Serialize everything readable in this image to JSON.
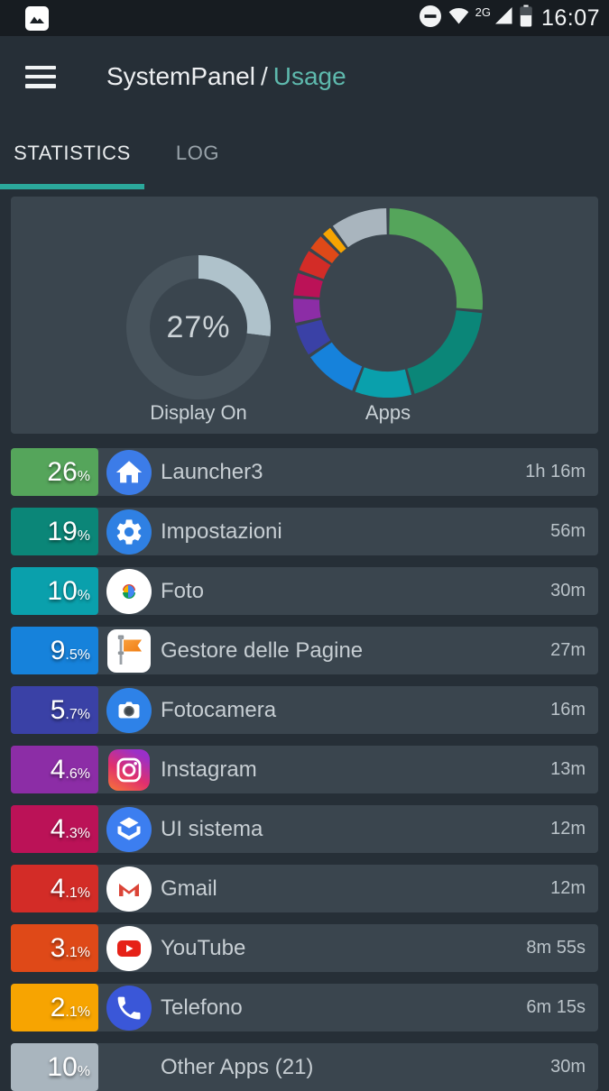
{
  "status_bar": {
    "time": "16:07",
    "network": "2G",
    "icons": [
      "image-notification",
      "do-not-disturb",
      "wifi",
      "signal-strength",
      "battery"
    ]
  },
  "header": {
    "app_title": "SystemPanel",
    "separator": "/",
    "section": "Usage",
    "menu_icon": "hamburger-menu"
  },
  "tabs": [
    {
      "label": "STATISTICS",
      "active": true
    },
    {
      "label": "LOG",
      "active": false
    }
  ],
  "theme": {
    "background": "#262F37",
    "panel": "#3A454E",
    "status_bar": "#171C21",
    "accent_teal": "#2BA89B",
    "usage_text": "#5EB9AD"
  },
  "chart_data": [
    {
      "type": "pie",
      "style": "donut",
      "title": "Display On",
      "center_label": "27%",
      "gap_deg": 0,
      "segments": [
        {
          "label": "Display On",
          "value": 27,
          "color": "#AFC2CB"
        },
        {
          "label": "Remainder",
          "value": 73,
          "color": "#47535C"
        }
      ]
    },
    {
      "type": "pie",
      "style": "donut",
      "title": "Apps",
      "gap_deg": 2,
      "segments": [
        {
          "label": "Launcher3",
          "value": 26,
          "color": "#55A55B"
        },
        {
          "label": "Impostazioni",
          "value": 19,
          "color": "#0B8678"
        },
        {
          "label": "Foto",
          "value": 10,
          "color": "#0AA0AC"
        },
        {
          "label": "Gestore delle Pagine",
          "value": 9.5,
          "color": "#1682DB"
        },
        {
          "label": "Fotocamera",
          "value": 5.7,
          "color": "#3A41A6"
        },
        {
          "label": "Instagram",
          "value": 4.6,
          "color": "#8C2DA6"
        },
        {
          "label": "UI sistema",
          "value": 4.3,
          "color": "#BB1257"
        },
        {
          "label": "Gmail",
          "value": 4.1,
          "color": "#D32C27"
        },
        {
          "label": "YouTube",
          "value": 3.1,
          "color": "#DF4918"
        },
        {
          "label": "Telefono",
          "value": 2.1,
          "color": "#F7A401"
        },
        {
          "label": "Other Apps (21)",
          "value": 10,
          "color": "#A9B5BE"
        }
      ]
    }
  ],
  "rows": [
    {
      "pct_big": "26",
      "pct_small": "%",
      "name": "Launcher3",
      "duration": "1h 16m",
      "color": "#55A55B",
      "icon": "launcher-home-icon"
    },
    {
      "pct_big": "19",
      "pct_small": "%",
      "name": "Impostazioni",
      "duration": "56m",
      "color": "#0B8678",
      "icon": "settings-gear-icon"
    },
    {
      "pct_big": "10",
      "pct_small": "%",
      "name": "Foto",
      "duration": "30m",
      "color": "#0AA0AC",
      "icon": "google-photos-icon"
    },
    {
      "pct_big": "9",
      "pct_small": ".5%",
      "name": "Gestore delle Pagine",
      "duration": "27m",
      "color": "#1682DB",
      "icon": "pages-manager-flag-icon"
    },
    {
      "pct_big": "5",
      "pct_small": ".7%",
      "name": "Fotocamera",
      "duration": "16m",
      "color": "#3A41A6",
      "icon": "camera-icon"
    },
    {
      "pct_big": "4",
      "pct_small": ".6%",
      "name": "Instagram",
      "duration": "13m",
      "color": "#8C2DA6",
      "icon": "instagram-icon"
    },
    {
      "pct_big": "4",
      "pct_small": ".3%",
      "name": "UI sistema",
      "duration": "12m",
      "color": "#BB1257",
      "icon": "system-ui-cube-icon"
    },
    {
      "pct_big": "4",
      "pct_small": ".1%",
      "name": "Gmail",
      "duration": "12m",
      "color": "#D32C27",
      "icon": "gmail-icon"
    },
    {
      "pct_big": "3",
      "pct_small": ".1%",
      "name": "YouTube",
      "duration": "8m 55s",
      "color": "#DF4918",
      "icon": "youtube-icon"
    },
    {
      "pct_big": "2",
      "pct_small": ".1%",
      "name": "Telefono",
      "duration": "6m 15s",
      "color": "#F7A401",
      "icon": "phone-icon"
    },
    {
      "pct_big": "10",
      "pct_small": "%",
      "name": "Other Apps (21)",
      "duration": "30m",
      "color": "#A9B5BE",
      "icon": "none"
    }
  ]
}
